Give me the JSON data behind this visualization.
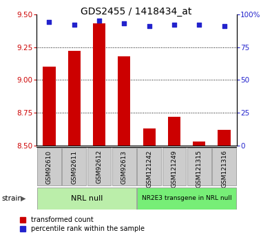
{
  "title": "GDS2455 / 1418434_at",
  "samples": [
    "GSM92610",
    "GSM92611",
    "GSM92612",
    "GSM92613",
    "GSM121242",
    "GSM121249",
    "GSM121315",
    "GSM121316"
  ],
  "red_values": [
    9.1,
    9.22,
    9.43,
    9.18,
    8.63,
    8.72,
    8.53,
    8.62
  ],
  "blue_values": [
    94,
    92,
    95,
    93,
    91,
    92,
    92,
    91
  ],
  "ylim_left": [
    8.5,
    9.5
  ],
  "ylim_right": [
    0,
    100
  ],
  "yticks_left": [
    8.5,
    8.75,
    9.0,
    9.25,
    9.5
  ],
  "yticks_right": [
    0,
    25,
    50,
    75,
    100
  ],
  "groups": [
    {
      "label": "NRL null",
      "start": 0,
      "end": 4,
      "color": "#bbeeaa"
    },
    {
      "label": "NR2E3 transgene in NRL null",
      "start": 4,
      "end": 8,
      "color": "#77ee77"
    }
  ],
  "strain_label": "strain",
  "legend_red": "transformed count",
  "legend_blue": "percentile rank within the sample",
  "red_color": "#cc0000",
  "blue_color": "#2222cc",
  "bar_width": 0.5,
  "title_fontsize": 10,
  "tick_fontsize": 7.5,
  "sample_fontsize": 6.5,
  "group_fontsize_large": 8,
  "group_fontsize_small": 6.5,
  "legend_fontsize": 7,
  "xticklabel_bg": "#cccccc",
  "grid_color": "#333333"
}
